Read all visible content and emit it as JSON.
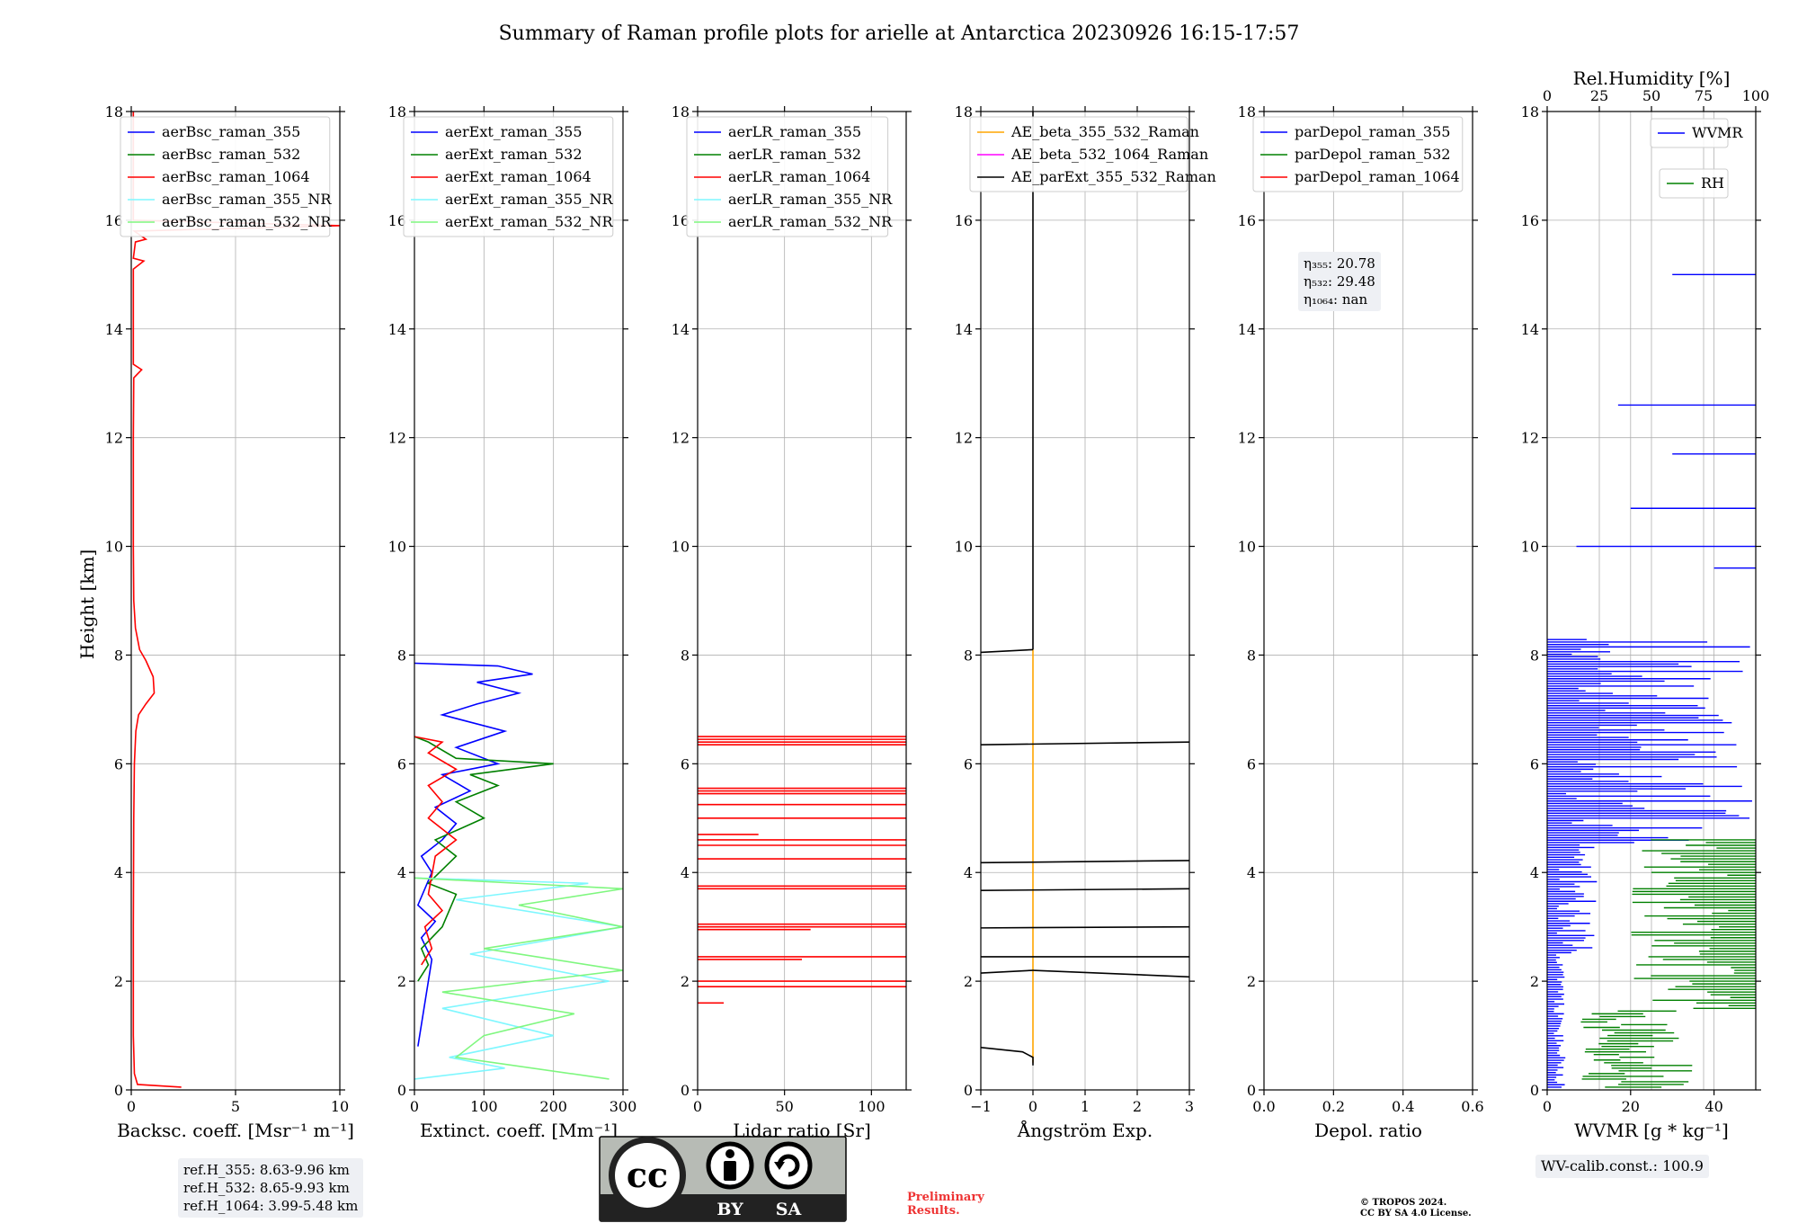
{
  "title": "Summary of Raman profile plots for arielle at Antarctica 20230926 16:15-17:57",
  "shared_ylabel": "Height [km]",
  "colors": {
    "c355": "#0000ff",
    "c532": "#008000",
    "c1064": "#ff0000",
    "c355nr": "#7ff7ff",
    "c532nr": "#7ff77f",
    "orange": "#ffa500",
    "magenta": "#ff00ff",
    "black": "#000000"
  },
  "chart_data": [
    {
      "type": "line",
      "xlabel": "Backsc. coeff. [Msr⁻¹ m⁻¹]",
      "ylabel": "Height [km]",
      "xlim": [
        0,
        10
      ],
      "ylim": [
        0,
        18
      ],
      "xticks": [
        0,
        5,
        10
      ],
      "xtick_labels": [
        "0",
        "5",
        "10"
      ],
      "yticks": [
        0,
        2,
        4,
        6,
        8,
        10,
        12,
        14,
        16,
        18
      ],
      "grid": true,
      "legend_position": "top",
      "legend": [
        "aerBsc_raman_355",
        "aerBsc_raman_532",
        "aerBsc_raman_1064",
        "aerBsc_raman_355_NR",
        "aerBsc_raman_532_NR"
      ],
      "series": [
        {
          "name": "aerBsc_raman_1064",
          "color": "#ff0000",
          "points": [
            [
              2.4,
              0.05
            ],
            [
              0.3,
              0.1
            ],
            [
              0.15,
              0.3
            ],
            [
              0.1,
              1
            ],
            [
              0.1,
              3
            ],
            [
              0.12,
              5
            ],
            [
              0.15,
              6
            ],
            [
              0.22,
              6.6
            ],
            [
              0.35,
              6.9
            ],
            [
              0.7,
              7.1
            ],
            [
              1.1,
              7.3
            ],
            [
              1.05,
              7.6
            ],
            [
              0.7,
              7.9
            ],
            [
              0.4,
              8.1
            ],
            [
              0.2,
              8.5
            ],
            [
              0.12,
              9
            ],
            [
              0.1,
              10
            ],
            [
              0.1,
              12
            ],
            [
              0.12,
              13.1
            ],
            [
              0.5,
              13.25
            ],
            [
              0.1,
              13.35
            ],
            [
              0.1,
              15.1
            ],
            [
              0.6,
              15.25
            ],
            [
              0.1,
              15.3
            ],
            [
              0.2,
              15.6
            ],
            [
              0.7,
              15.65
            ],
            [
              0.15,
              15.8
            ],
            [
              10,
              15.9
            ],
            [
              0.1,
              16
            ],
            [
              0.1,
              18
            ]
          ]
        }
      ],
      "annotation": [
        "ref.H_355: 8.63-9.96 km",
        "ref.H_532: 8.65-9.93 km",
        "ref.H_1064: 3.99-5.48 km"
      ]
    },
    {
      "type": "line",
      "xlabel": "Extinct. coeff. [Mm⁻¹]",
      "xlim": [
        0,
        300
      ],
      "ylim": [
        0,
        18
      ],
      "xticks": [
        0,
        100,
        200,
        300
      ],
      "xtick_labels": [
        "0",
        "100",
        "200",
        "300"
      ],
      "yticks": [
        0,
        2,
        4,
        6,
        8,
        10,
        12,
        14,
        16,
        18
      ],
      "grid": true,
      "legend_position": "top",
      "legend": [
        "aerExt_raman_355",
        "aerExt_raman_532",
        "aerExt_raman_1064",
        "aerExt_raman_355_NR",
        "aerExt_raman_532_NR"
      ],
      "series": [
        {
          "name": "aerExt_raman_355",
          "color": "#0000ff",
          "points": [
            [
              5,
              0.8
            ],
            [
              10,
              1.2
            ],
            [
              15,
              1.6
            ],
            [
              20,
              2
            ],
            [
              25,
              2.4
            ],
            [
              10,
              2.8
            ],
            [
              30,
              3.1
            ],
            [
              5,
              3.4
            ],
            [
              15,
              3.7
            ],
            [
              25,
              4
            ],
            [
              10,
              4.3
            ],
            [
              40,
              4.6
            ],
            [
              60,
              4.9
            ],
            [
              30,
              5.2
            ],
            [
              80,
              5.5
            ],
            [
              40,
              5.8
            ],
            [
              120,
              6
            ],
            [
              60,
              6.3
            ],
            [
              130,
              6.6
            ],
            [
              40,
              6.9
            ],
            [
              90,
              7.1
            ],
            [
              150,
              7.3
            ],
            [
              90,
              7.5
            ],
            [
              170,
              7.65
            ],
            [
              120,
              7.8
            ],
            [
              0,
              7.85
            ]
          ]
        },
        {
          "name": "aerExt_raman_532",
          "color": "#008000",
          "points": [
            [
              5,
              2
            ],
            [
              20,
              2.3
            ],
            [
              10,
              2.6
            ],
            [
              40,
              3
            ],
            [
              60,
              3.6
            ],
            [
              20,
              3.8
            ],
            [
              60,
              4.3
            ],
            [
              30,
              4.6
            ],
            [
              100,
              5
            ],
            [
              60,
              5.3
            ],
            [
              120,
              5.6
            ],
            [
              80,
              5.8
            ],
            [
              200,
              6
            ],
            [
              60,
              6.1
            ],
            [
              20,
              6.4
            ],
            [
              0,
              6.5
            ]
          ]
        },
        {
          "name": "aerExt_raman_1064",
          "color": "#ff0000",
          "points": [
            [
              10,
              2.3
            ],
            [
              25,
              2.6
            ],
            [
              15,
              3
            ],
            [
              40,
              3.3
            ],
            [
              20,
              3.6
            ],
            [
              30,
              4.3
            ],
            [
              60,
              4.6
            ],
            [
              20,
              5
            ],
            [
              40,
              5.3
            ],
            [
              20,
              5.6
            ],
            [
              60,
              5.9
            ],
            [
              20,
              6.2
            ],
            [
              40,
              6.4
            ],
            [
              0,
              6.5
            ]
          ]
        },
        {
          "name": "aerExt_raman_355_NR",
          "color": "#7ff7ff",
          "points": [
            [
              0,
              0.2
            ],
            [
              130,
              0.4
            ],
            [
              50,
              0.6
            ],
            [
              200,
              1
            ],
            [
              40,
              1.5
            ],
            [
              280,
              2
            ],
            [
              80,
              2.5
            ],
            [
              300,
              3
            ],
            [
              60,
              3.5
            ],
            [
              250,
              3.8
            ],
            [
              0,
              3.9
            ]
          ]
        },
        {
          "name": "aerExt_raman_532_NR",
          "color": "#7ff77f",
          "points": [
            [
              280,
              0.2
            ],
            [
              60,
              0.6
            ],
            [
              100,
              1
            ],
            [
              230,
              1.4
            ],
            [
              40,
              1.8
            ],
            [
              300,
              2.2
            ],
            [
              100,
              2.6
            ],
            [
              300,
              3
            ],
            [
              150,
              3.4
            ],
            [
              300,
              3.7
            ],
            [
              0,
              3.9
            ]
          ]
        }
      ]
    },
    {
      "type": "line",
      "xlabel": "Lidar ratio [Sr]",
      "xlim": [
        0,
        120
      ],
      "ylim": [
        0,
        18
      ],
      "xticks": [
        0,
        50,
        100
      ],
      "xtick_labels": [
        "0",
        "50",
        "100"
      ],
      "yticks": [
        0,
        2,
        4,
        6,
        8,
        10,
        12,
        14,
        16,
        18
      ],
      "grid": true,
      "legend_position": "top",
      "legend": [
        "aerLR_raman_355",
        "aerLR_raman_532",
        "aerLR_raman_1064",
        "aerLR_raman_355_NR",
        "aerLR_raman_532_NR"
      ],
      "series": [
        {
          "name": "aerLR_raman_1064",
          "color": "#ff0000",
          "hlines": [
            1.6,
            1.9,
            2.0,
            2.4,
            2.45,
            2.95,
            3.0,
            3.05,
            3.7,
            3.75,
            4.25,
            4.5,
            4.6,
            4.7,
            5.0,
            5.25,
            5.45,
            5.5,
            5.55,
            6.35,
            6.4,
            6.45,
            6.5
          ],
          "hline_from": [
            15,
            120,
            120,
            60,
            120,
            65,
            120,
            120,
            120,
            120,
            120,
            120,
            120,
            35,
            120,
            120,
            120,
            120,
            120,
            120,
            120,
            120,
            120
          ]
        }
      ]
    },
    {
      "type": "line",
      "xlabel": "Ångström Exp.",
      "xlim": [
        -1,
        3
      ],
      "ylim": [
        0,
        18
      ],
      "xticks": [
        -1,
        0,
        1,
        2,
        3
      ],
      "xtick_labels": [
        "−1",
        "0",
        "1",
        "2",
        "3"
      ],
      "yticks": [
        0,
        2,
        4,
        6,
        8,
        10,
        12,
        14,
        16,
        18
      ],
      "grid": true,
      "legend_position": "top",
      "legend": [
        "AE_beta_355_532_Raman",
        "AE_beta_532_1064_Raman",
        "AE_parExt_355_532_Raman"
      ],
      "series": [
        {
          "name": "AE_beta_355_532_Raman",
          "color": "#ffa500",
          "points": [
            [
              0,
              0.5
            ],
            [
              0,
              8.1
            ]
          ]
        },
        {
          "name": "AE_parExt_355_532_Raman",
          "color": "#000000",
          "segments": [
            [
              [
                0,
                0.45
              ],
              [
                0,
                0.6
              ],
              [
                -0.2,
                0.7
              ],
              [
                -1,
                0.78
              ]
            ],
            [
              [
                0,
                2.2
              ],
              [
                -1,
                2.15
              ]
            ],
            [
              [
                0,
                2.2
              ],
              [
                3,
                2.08
              ]
            ],
            [
              [
                -1,
                2.45
              ],
              [
                3,
                2.45
              ]
            ],
            [
              [
                -1,
                2.98
              ],
              [
                3,
                3.0
              ]
            ],
            [
              [
                -1,
                3.67
              ],
              [
                3,
                3.7
              ]
            ],
            [
              [
                -1,
                4.18
              ],
              [
                3,
                4.22
              ]
            ],
            [
              [
                -1,
                6.35
              ],
              [
                3,
                6.4
              ]
            ],
            [
              [
                -1,
                8.05
              ],
              [
                0,
                8.1
              ]
            ],
            [
              [
                0,
                8.1
              ],
              [
                0,
                18
              ]
            ]
          ]
        }
      ]
    },
    {
      "type": "line",
      "xlabel": "Depol. ratio",
      "xlim": [
        0.0,
        0.6
      ],
      "ylim": [
        0,
        18
      ],
      "xticks": [
        0.0,
        0.2,
        0.4,
        0.6
      ],
      "xtick_labels": [
        "0.0",
        "0.2",
        "0.4",
        "0.6"
      ],
      "yticks": [
        0,
        2,
        4,
        6,
        8,
        10,
        12,
        14,
        16,
        18
      ],
      "grid": true,
      "legend_position": "top",
      "legend": [
        "parDepol_raman_355",
        "parDepol_raman_532",
        "parDepol_raman_1064"
      ],
      "series": [],
      "annotation": [
        "η₃₅₅: 20.78",
        "η₅₃₂: 29.48",
        "η₁₀₆₄: nan"
      ]
    },
    {
      "type": "line",
      "xlabel": "WVMR [g * kg⁻¹]",
      "top_xlabel": "Rel.Humidity [%]",
      "xlim": [
        0,
        50
      ],
      "top_xlim": [
        0,
        100
      ],
      "ylim": [
        0,
        18
      ],
      "xticks": [
        0,
        20,
        40
      ],
      "xtick_labels": [
        "0",
        "20",
        "40"
      ],
      "top_xticks": [
        0,
        25,
        50,
        75,
        100
      ],
      "top_xtick_labels": [
        "0",
        "25",
        "50",
        "75",
        "100"
      ],
      "yticks": [
        0,
        2,
        4,
        6,
        8,
        10,
        12,
        14,
        16,
        18
      ],
      "grid": true,
      "legend_position": "top-right",
      "legend": [
        "WVMR",
        "RH"
      ],
      "series": [
        {
          "name": "WVMR",
          "color": "#0000ff"
        },
        {
          "name": "RH",
          "color": "#008000"
        }
      ],
      "annotation": [
        "WV-calib.const.: 100.9"
      ]
    }
  ],
  "footer": {
    "license_by": "BY",
    "license_sa": "SA",
    "preliminary_line1": "Preliminary",
    "preliminary_line2": "Results.",
    "copyright_line1": "© TROPOS 2024.",
    "copyright_line2": "CC BY SA 4.0 License."
  }
}
